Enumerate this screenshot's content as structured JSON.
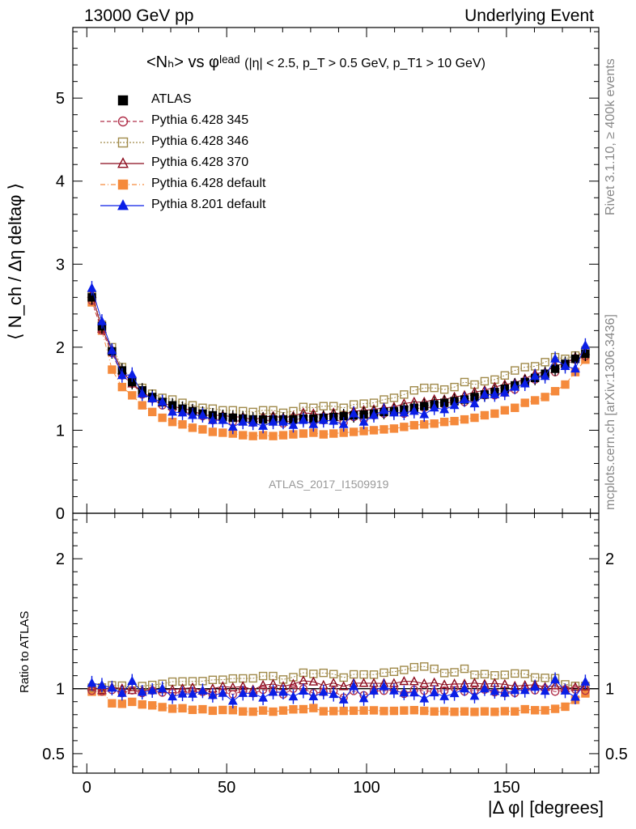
{
  "header": {
    "left": "13000 GeV pp",
    "right": "Underlying Event"
  },
  "side_text": {
    "rivet": "Rivet 3.1.10, ≥ 400k events",
    "mcplots": "mcplots.cern.ch [arXiv:1306.3436]"
  },
  "title": {
    "main": "<Nₕ> vs φˡᵉᵃᵈ",
    "cuts": "(|η| < 2.5, p_T > 0.5 GeV, p_T1 > 10 GeV)"
  },
  "watermark": "ATLAS_2017_I1509919",
  "colors": {
    "atlas": "#000000",
    "p345": "#b0304a",
    "p346": "#a08a4a",
    "p370": "#8b0a1c",
    "p6def": "#f58a3c",
    "p8def": "#0a1ee6"
  },
  "chart_data": {
    "type": "scatter",
    "x_label": "|Δ φ| [degrees]",
    "y_label": "⟨ N_ch / Δη deltaφ ⟩",
    "ratio_label": "Ratio to ATLAS",
    "xlim": [
      -5,
      183
    ],
    "ylim": [
      0,
      5.85
    ],
    "ratio_ylim": [
      0.35,
      2.35
    ],
    "x_ticks": [
      0,
      50,
      100,
      150
    ],
    "y_ticks": [
      0,
      1,
      2,
      3,
      4,
      5
    ],
    "ratio_ticks": [
      0.5,
      1,
      2
    ],
    "x": [
      1.8,
      5.4,
      9.0,
      12.6,
      16.2,
      19.8,
      23.4,
      27.0,
      30.6,
      34.2,
      37.8,
      41.4,
      45.0,
      48.6,
      52.2,
      55.8,
      59.4,
      63.0,
      66.6,
      70.2,
      73.8,
      77.4,
      81.0,
      84.6,
      88.2,
      91.8,
      95.4,
      99.0,
      102.6,
      106.2,
      109.8,
      113.4,
      117.0,
      120.6,
      124.2,
      127.8,
      131.4,
      135.0,
      138.6,
      142.2,
      145.8,
      149.4,
      153.0,
      156.6,
      160.2,
      163.8,
      167.4,
      171.0,
      174.6,
      178.2
    ],
    "series": [
      {
        "name": "ATLAS",
        "values": [
          2.6,
          2.25,
          1.95,
          1.72,
          1.58,
          1.48,
          1.4,
          1.34,
          1.3,
          1.26,
          1.23,
          1.2,
          1.18,
          1.16,
          1.15,
          1.14,
          1.13,
          1.13,
          1.13,
          1.13,
          1.13,
          1.14,
          1.14,
          1.15,
          1.16,
          1.17,
          1.18,
          1.19,
          1.2,
          1.22,
          1.23,
          1.25,
          1.27,
          1.29,
          1.31,
          1.33,
          1.35,
          1.37,
          1.4,
          1.43,
          1.46,
          1.5,
          1.54,
          1.58,
          1.63,
          1.68,
          1.74,
          1.8,
          1.86,
          1.92
        ]
      },
      {
        "name": "Pythia 6.428 345",
        "values": [
          2.56,
          2.2,
          1.93,
          1.66,
          1.56,
          1.43,
          1.38,
          1.3,
          1.26,
          1.22,
          1.2,
          1.17,
          1.12,
          1.13,
          1.1,
          1.12,
          1.09,
          1.12,
          1.11,
          1.08,
          1.13,
          1.14,
          1.1,
          1.12,
          1.14,
          1.09,
          1.16,
          1.13,
          1.18,
          1.2,
          1.22,
          1.2,
          1.26,
          1.27,
          1.28,
          1.31,
          1.36,
          1.34,
          1.38,
          1.42,
          1.42,
          1.45,
          1.49,
          1.57,
          1.61,
          1.68,
          1.7,
          1.79,
          1.85,
          1.89
        ]
      },
      {
        "name": "Pythia 6.428 346",
        "values": [
          2.62,
          2.27,
          2.0,
          1.76,
          1.6,
          1.51,
          1.44,
          1.39,
          1.37,
          1.33,
          1.3,
          1.27,
          1.26,
          1.24,
          1.24,
          1.23,
          1.22,
          1.24,
          1.24,
          1.21,
          1.23,
          1.28,
          1.27,
          1.29,
          1.29,
          1.27,
          1.31,
          1.32,
          1.33,
          1.37,
          1.39,
          1.43,
          1.48,
          1.51,
          1.51,
          1.49,
          1.52,
          1.58,
          1.55,
          1.59,
          1.61,
          1.66,
          1.72,
          1.76,
          1.77,
          1.82,
          1.88,
          1.86,
          1.9,
          1.96
        ]
      },
      {
        "name": "Pythia 6.428 370",
        "values": [
          2.64,
          2.22,
          1.97,
          1.72,
          1.56,
          1.46,
          1.39,
          1.33,
          1.29,
          1.26,
          1.24,
          1.18,
          1.18,
          1.18,
          1.16,
          1.16,
          1.12,
          1.16,
          1.17,
          1.15,
          1.17,
          1.21,
          1.2,
          1.18,
          1.21,
          1.19,
          1.23,
          1.24,
          1.25,
          1.27,
          1.28,
          1.32,
          1.34,
          1.34,
          1.37,
          1.37,
          1.4,
          1.42,
          1.46,
          1.48,
          1.52,
          1.55,
          1.57,
          1.62,
          1.68,
          1.7,
          1.78,
          1.8,
          1.88,
          1.95
        ]
      },
      {
        "name": "Pythia 6.428 default",
        "values": [
          2.54,
          2.2,
          1.73,
          1.52,
          1.42,
          1.3,
          1.22,
          1.15,
          1.1,
          1.07,
          1.03,
          1.01,
          0.98,
          0.97,
          0.96,
          0.94,
          0.93,
          0.94,
          0.93,
          0.94,
          0.95,
          0.96,
          0.97,
          0.95,
          0.96,
          0.97,
          0.98,
          0.99,
          1.0,
          1.01,
          1.02,
          1.04,
          1.06,
          1.07,
          1.08,
          1.1,
          1.11,
          1.13,
          1.15,
          1.18,
          1.2,
          1.24,
          1.27,
          1.33,
          1.36,
          1.4,
          1.47,
          1.55,
          1.7,
          1.85
        ]
      },
      {
        "name": "Pythia 8.201 default",
        "values": [
          2.71,
          2.31,
          1.96,
          1.66,
          1.67,
          1.44,
          1.38,
          1.34,
          1.22,
          1.21,
          1.18,
          1.18,
          1.12,
          1.12,
          1.04,
          1.1,
          1.09,
          1.05,
          1.1,
          1.1,
          1.06,
          1.12,
          1.07,
          1.12,
          1.11,
          1.07,
          1.2,
          1.1,
          1.18,
          1.24,
          1.21,
          1.21,
          1.23,
          1.19,
          1.27,
          1.25,
          1.3,
          1.37,
          1.32,
          1.43,
          1.43,
          1.45,
          1.52,
          1.56,
          1.65,
          1.65,
          1.86,
          1.77,
          1.74,
          2.02
        ]
      }
    ]
  }
}
